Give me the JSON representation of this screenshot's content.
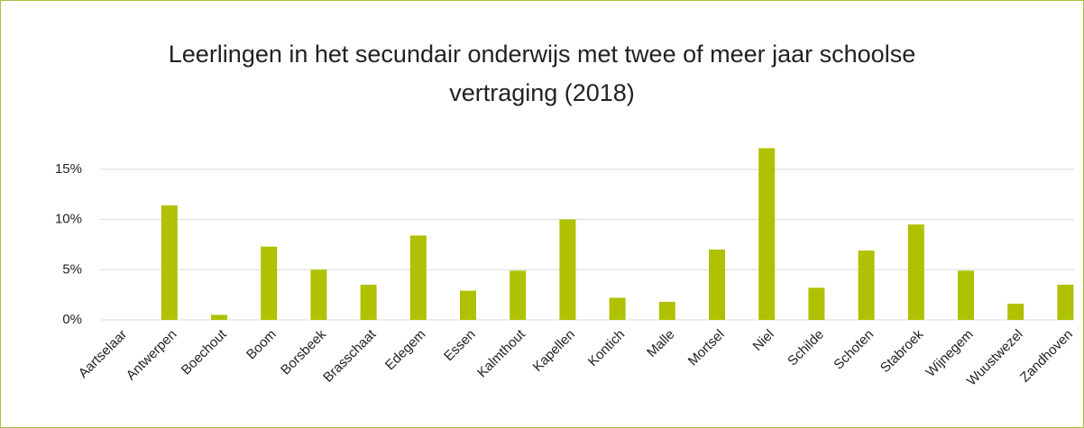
{
  "chart_data": {
    "type": "bar",
    "title": "Leerlingen in het secundair onderwijs met twee of meer jaar schoolse vertraging (2018)",
    "categories": [
      "Aartselaar",
      "Antwerpen",
      "Boechout",
      "Boom",
      "Borsbeek",
      "Brasschaat",
      "Edegem",
      "Essen",
      "Kalmthout",
      "Kapellen",
      "Kontich",
      "Malle",
      "Mortsel",
      "Niel",
      "Schilde",
      "Schoten",
      "Stabroek",
      "Wijnegem",
      "Wuustwezel",
      "Zandhoven"
    ],
    "values": [
      0,
      11.4,
      0.5,
      7.3,
      5.0,
      3.5,
      8.4,
      2.9,
      4.9,
      10.0,
      2.2,
      1.8,
      7.0,
      17.1,
      3.2,
      6.9,
      9.5,
      4.9,
      1.6,
      3.5
    ],
    "color": "#afc100",
    "ylim": [
      0,
      17.5
    ],
    "yticks": [
      {
        "value": 0,
        "label": "0%"
      },
      {
        "value": 5,
        "label": "5%"
      },
      {
        "value": 10,
        "label": "10%"
      },
      {
        "value": 15,
        "label": "15%"
      }
    ],
    "grid": true
  }
}
